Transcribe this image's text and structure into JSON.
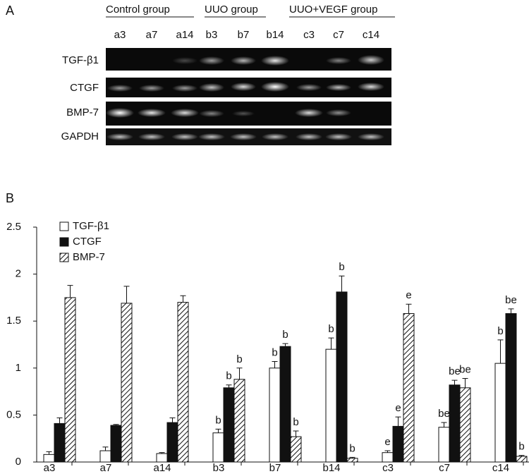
{
  "panel_a": {
    "label": "A",
    "groups": [
      "Control group",
      "UUO group",
      "UUO+VEGF group"
    ],
    "lanes": [
      "a3",
      "a7",
      "a14",
      "b3",
      "b7",
      "b14",
      "c3",
      "c7",
      "c14"
    ],
    "rows": [
      "TGF-β1",
      "CTGF",
      "BMP-7",
      "GAPDH"
    ]
  },
  "chart_data": {
    "type": "bar",
    "panel_label": "B",
    "categories": [
      "a3",
      "a7",
      "a14",
      "b3",
      "b7",
      "b14",
      "c3",
      "c7",
      "c14"
    ],
    "series": [
      {
        "name": "TGF-β1",
        "color": "#ffffff",
        "values": [
          0.08,
          0.12,
          0.09,
          0.31,
          1.0,
          1.2,
          0.1,
          0.37,
          1.05
        ],
        "errors": [
          0.03,
          0.04,
          0.01,
          0.04,
          0.07,
          0.12,
          0.02,
          0.05,
          0.25
        ],
        "annotations": [
          null,
          null,
          null,
          "b",
          "b",
          "b",
          "e",
          "be",
          "b"
        ]
      },
      {
        "name": "CTGF",
        "color": "#111111",
        "values": [
          0.41,
          0.39,
          0.42,
          0.79,
          1.23,
          1.81,
          0.38,
          0.82,
          1.58
        ],
        "errors": [
          0.06,
          0.01,
          0.05,
          0.03,
          0.03,
          0.17,
          0.1,
          0.05,
          0.05
        ],
        "annotations": [
          null,
          null,
          null,
          "b",
          "b",
          "b",
          "e",
          "be",
          "be"
        ]
      },
      {
        "name": "BMP-7",
        "color": "#ffffff",
        "hatch": true,
        "values": [
          1.75,
          1.69,
          1.7,
          0.88,
          0.27,
          0.04,
          1.58,
          0.79,
          0.06
        ],
        "errors": [
          0.13,
          0.18,
          0.07,
          0.12,
          0.06,
          0.01,
          0.1,
          0.1,
          0.01
        ],
        "annotations": [
          null,
          null,
          null,
          "b",
          "b",
          "b",
          "e",
          "be",
          "b"
        ]
      }
    ],
    "ylim": [
      0,
      2.5
    ],
    "yticks": [
      0,
      0.5,
      1,
      1.5,
      2,
      2.5
    ],
    "legend": "top-left"
  }
}
